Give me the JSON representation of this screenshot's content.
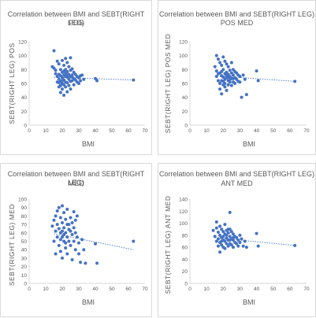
{
  "chart_data": [
    {
      "type": "scatter",
      "title": "Correlation between BMI and SEBT(RIGHT LEG)",
      "subtitle": "POS",
      "xlabel": "BMI",
      "ylabel": "SEBT(RIGHT LEG) POS",
      "xlim": [
        0,
        70
      ],
      "ylim": [
        0,
        120
      ],
      "xticks": [
        "0",
        "10",
        "20",
        "30",
        "40",
        "50",
        "60",
        "70"
      ],
      "yticks": [
        "0",
        "20",
        "40",
        "60",
        "80",
        "100",
        "120"
      ],
      "trendline": [
        [
          15,
          69
        ],
        [
          63,
          65
        ]
      ],
      "points": [
        [
          15,
          107
        ],
        [
          14,
          84
        ],
        [
          15,
          82
        ],
        [
          16,
          79
        ],
        [
          16,
          74
        ],
        [
          17,
          92
        ],
        [
          17,
          70
        ],
        [
          17,
          62
        ],
        [
          18,
          88
        ],
        [
          18,
          73
        ],
        [
          18,
          66
        ],
        [
          18,
          55
        ],
        [
          19,
          80
        ],
        [
          19,
          71
        ],
        [
          19,
          63
        ],
        [
          19,
          47
        ],
        [
          20,
          93
        ],
        [
          20,
          76
        ],
        [
          20,
          68
        ],
        [
          20,
          60
        ],
        [
          20,
          52
        ],
        [
          21,
          86
        ],
        [
          21,
          72
        ],
        [
          21,
          65
        ],
        [
          21,
          58
        ],
        [
          21,
          43
        ],
        [
          22,
          96
        ],
        [
          22,
          80
        ],
        [
          22,
          70
        ],
        [
          22,
          62
        ],
        [
          22,
          55
        ],
        [
          23,
          90
        ],
        [
          23,
          77
        ],
        [
          23,
          69
        ],
        [
          23,
          61
        ],
        [
          23,
          48
        ],
        [
          24,
          84
        ],
        [
          24,
          73
        ],
        [
          24,
          66
        ],
        [
          24,
          57
        ],
        [
          25,
          97
        ],
        [
          25,
          79
        ],
        [
          25,
          70
        ],
        [
          25,
          63
        ],
        [
          25,
          52
        ],
        [
          26,
          81
        ],
        [
          26,
          72
        ],
        [
          26,
          64
        ],
        [
          27,
          76
        ],
        [
          27,
          67
        ],
        [
          27,
          58
        ],
        [
          28,
          73
        ],
        [
          28,
          65
        ],
        [
          29,
          70
        ],
        [
          29,
          62
        ],
        [
          30,
          68
        ],
        [
          30,
          60
        ],
        [
          31,
          71
        ],
        [
          31,
          64
        ],
        [
          32,
          72
        ],
        [
          33,
          66
        ],
        [
          40,
          67
        ],
        [
          41,
          64
        ],
        [
          63,
          65
        ],
        [
          20,
          64
        ],
        [
          22,
          75
        ],
        [
          24,
          68
        ],
        [
          26,
          69
        ],
        [
          19,
          57
        ],
        [
          23,
          72
        ],
        [
          21,
          78
        ],
        [
          18,
          61
        ]
      ]
    },
    {
      "type": "scatter",
      "title": "Correlation between BMI and SEBT(RIGHT LEG)",
      "subtitle": "POS MED",
      "xlabel": "BMI",
      "ylabel": "SEBT(RIGHT LEG) POS MED",
      "xlim": [
        0,
        70
      ],
      "ylim": [
        0,
        120
      ],
      "xticks": [
        "0",
        "10",
        "20",
        "30",
        "40",
        "50",
        "60",
        "70"
      ],
      "yticks": [
        "0",
        "20",
        "40",
        "60",
        "80",
        "100",
        "120"
      ],
      "trendline": [
        [
          15,
          71
        ],
        [
          63,
          63
        ]
      ],
      "points": [
        [
          16,
          100
        ],
        [
          15,
          84
        ],
        [
          16,
          78
        ],
        [
          16,
          70
        ],
        [
          17,
          95
        ],
        [
          17,
          74
        ],
        [
          17,
          64
        ],
        [
          18,
          90
        ],
        [
          18,
          75
        ],
        [
          18,
          60
        ],
        [
          18,
          52
        ],
        [
          19,
          86
        ],
        [
          19,
          71
        ],
        [
          19,
          64
        ],
        [
          19,
          45
        ],
        [
          20,
          98
        ],
        [
          20,
          80
        ],
        [
          20,
          69
        ],
        [
          20,
          58
        ],
        [
          21,
          92
        ],
        [
          21,
          74
        ],
        [
          21,
          66
        ],
        [
          21,
          55
        ],
        [
          22,
          88
        ],
        [
          22,
          76
        ],
        [
          22,
          68
        ],
        [
          22,
          50
        ],
        [
          23,
          84
        ],
        [
          23,
          73
        ],
        [
          23,
          64
        ],
        [
          23,
          58
        ],
        [
          24,
          79
        ],
        [
          24,
          70
        ],
        [
          24,
          62
        ],
        [
          25,
          90
        ],
        [
          25,
          75
        ],
        [
          25,
          67
        ],
        [
          25,
          57
        ],
        [
          26,
          80
        ],
        [
          26,
          72
        ],
        [
          26,
          62
        ],
        [
          27,
          77
        ],
        [
          27,
          68
        ],
        [
          27,
          60
        ],
        [
          28,
          75
        ],
        [
          28,
          66
        ],
        [
          29,
          72
        ],
        [
          29,
          63
        ],
        [
          30,
          70
        ],
        [
          30,
          62
        ],
        [
          31,
          40
        ],
        [
          32,
          72
        ],
        [
          33,
          66
        ],
        [
          34,
          44
        ],
        [
          40,
          78
        ],
        [
          41,
          64
        ],
        [
          63,
          63
        ],
        [
          20,
          63
        ],
        [
          22,
          72
        ],
        [
          24,
          66
        ],
        [
          26,
          67
        ],
        [
          23,
          69
        ],
        [
          21,
          60
        ],
        [
          19,
          77
        ]
      ]
    },
    {
      "type": "scatter",
      "title": "Correlation between BMI and SEBT(RIGHT LEG)",
      "subtitle": "MED",
      "xlabel": "BMI",
      "ylabel": "SEBT(RIGHT LEG) MED",
      "xlim": [
        0,
        70
      ],
      "ylim": [
        0,
        100
      ],
      "xticks": [
        "0",
        "10",
        "20",
        "30",
        "40",
        "50",
        "60",
        "70"
      ],
      "yticks": [
        "0",
        "10",
        "20",
        "30",
        "40",
        "50",
        "60",
        "70",
        "80",
        "90",
        "100"
      ],
      "trendline": [
        [
          15,
          59
        ],
        [
          63,
          40
        ]
      ],
      "points": [
        [
          14,
          68
        ],
        [
          15,
          75
        ],
        [
          15,
          50
        ],
        [
          16,
          80
        ],
        [
          16,
          62
        ],
        [
          16,
          35
        ],
        [
          17,
          86
        ],
        [
          17,
          70
        ],
        [
          17,
          55
        ],
        [
          18,
          90
        ],
        [
          18,
          65
        ],
        [
          18,
          45
        ],
        [
          19,
          78
        ],
        [
          19,
          60
        ],
        [
          19,
          38
        ],
        [
          20,
          92
        ],
        [
          20,
          72
        ],
        [
          20,
          55
        ],
        [
          20,
          30
        ],
        [
          21,
          84
        ],
        [
          21,
          66
        ],
        [
          21,
          50
        ],
        [
          22,
          76
        ],
        [
          22,
          60
        ],
        [
          22,
          42
        ],
        [
          23,
          88
        ],
        [
          23,
          70
        ],
        [
          23,
          55
        ],
        [
          23,
          35
        ],
        [
          24,
          64
        ],
        [
          24,
          50
        ],
        [
          25,
          78
        ],
        [
          25,
          62
        ],
        [
          25,
          45
        ],
        [
          26,
          72
        ],
        [
          26,
          58
        ],
        [
          26,
          28
        ],
        [
          27,
          85
        ],
        [
          27,
          66
        ],
        [
          27,
          50
        ],
        [
          28,
          60
        ],
        [
          28,
          40
        ],
        [
          29,
          80
        ],
        [
          29,
          55
        ],
        [
          30,
          48
        ],
        [
          30,
          35
        ],
        [
          31,
          25
        ],
        [
          32,
          52
        ],
        [
          33,
          40
        ],
        [
          34,
          24
        ],
        [
          40,
          47
        ],
        [
          41,
          24
        ],
        [
          63,
          50
        ],
        [
          21,
          58
        ],
        [
          24,
          70
        ],
        [
          19,
          52
        ],
        [
          22,
          48
        ],
        [
          28,
          75
        ],
        [
          20,
          62
        ]
      ]
    },
    {
      "type": "scatter",
      "title": "Correlation between BMI and SEBT(RIGHT LEG)",
      "subtitle": "ANT MED",
      "xlabel": "BMI",
      "ylabel": "SEBT(RIGHT LEG) ANT MED",
      "xlim": [
        0,
        70
      ],
      "ylim": [
        0,
        140
      ],
      "xticks": [
        "0",
        "10",
        "20",
        "30",
        "40",
        "50",
        "60",
        "70"
      ],
      "yticks": [
        "0",
        "20",
        "40",
        "60",
        "80",
        "100",
        "120",
        "140"
      ],
      "trendline": [
        [
          15,
          76
        ],
        [
          63,
          63
        ]
      ],
      "points": [
        [
          14,
          88
        ],
        [
          15,
          78
        ],
        [
          16,
          102
        ],
        [
          16,
          92
        ],
        [
          16,
          70
        ],
        [
          17,
          85
        ],
        [
          17,
          74
        ],
        [
          17,
          62
        ],
        [
          18,
          95
        ],
        [
          18,
          80
        ],
        [
          18,
          68
        ],
        [
          18,
          52
        ],
        [
          19,
          90
        ],
        [
          19,
          76
        ],
        [
          19,
          64
        ],
        [
          20,
          86
        ],
        [
          20,
          72
        ],
        [
          20,
          60
        ],
        [
          21,
          98
        ],
        [
          21,
          82
        ],
        [
          21,
          70
        ],
        [
          21,
          58
        ],
        [
          22,
          88
        ],
        [
          22,
          75
        ],
        [
          22,
          66
        ],
        [
          23,
          84
        ],
        [
          23,
          72
        ],
        [
          23,
          62
        ],
        [
          24,
          118
        ],
        [
          24,
          90
        ],
        [
          24,
          78
        ],
        [
          24,
          66
        ],
        [
          25,
          86
        ],
        [
          25,
          74
        ],
        [
          25,
          64
        ],
        [
          26,
          82
        ],
        [
          26,
          72
        ],
        [
          26,
          60
        ],
        [
          27,
          78
        ],
        [
          27,
          68
        ],
        [
          28,
          76
        ],
        [
          28,
          66
        ],
        [
          29,
          72
        ],
        [
          29,
          62
        ],
        [
          30,
          80
        ],
        [
          30,
          68
        ],
        [
          31,
          74
        ],
        [
          32,
          62
        ],
        [
          33,
          70
        ],
        [
          34,
          60
        ],
        [
          40,
          83
        ],
        [
          41,
          62
        ],
        [
          63,
          63
        ],
        [
          20,
          78
        ],
        [
          22,
          80
        ],
        [
          24,
          72
        ],
        [
          26,
          76
        ],
        [
          19,
          70
        ],
        [
          23,
          90
        ]
      ]
    }
  ],
  "style": {
    "marker_color": "#4472c4",
    "trend_color": "#4472c4",
    "axis_color": "#d9d9d9",
    "text_color": "#595959"
  }
}
